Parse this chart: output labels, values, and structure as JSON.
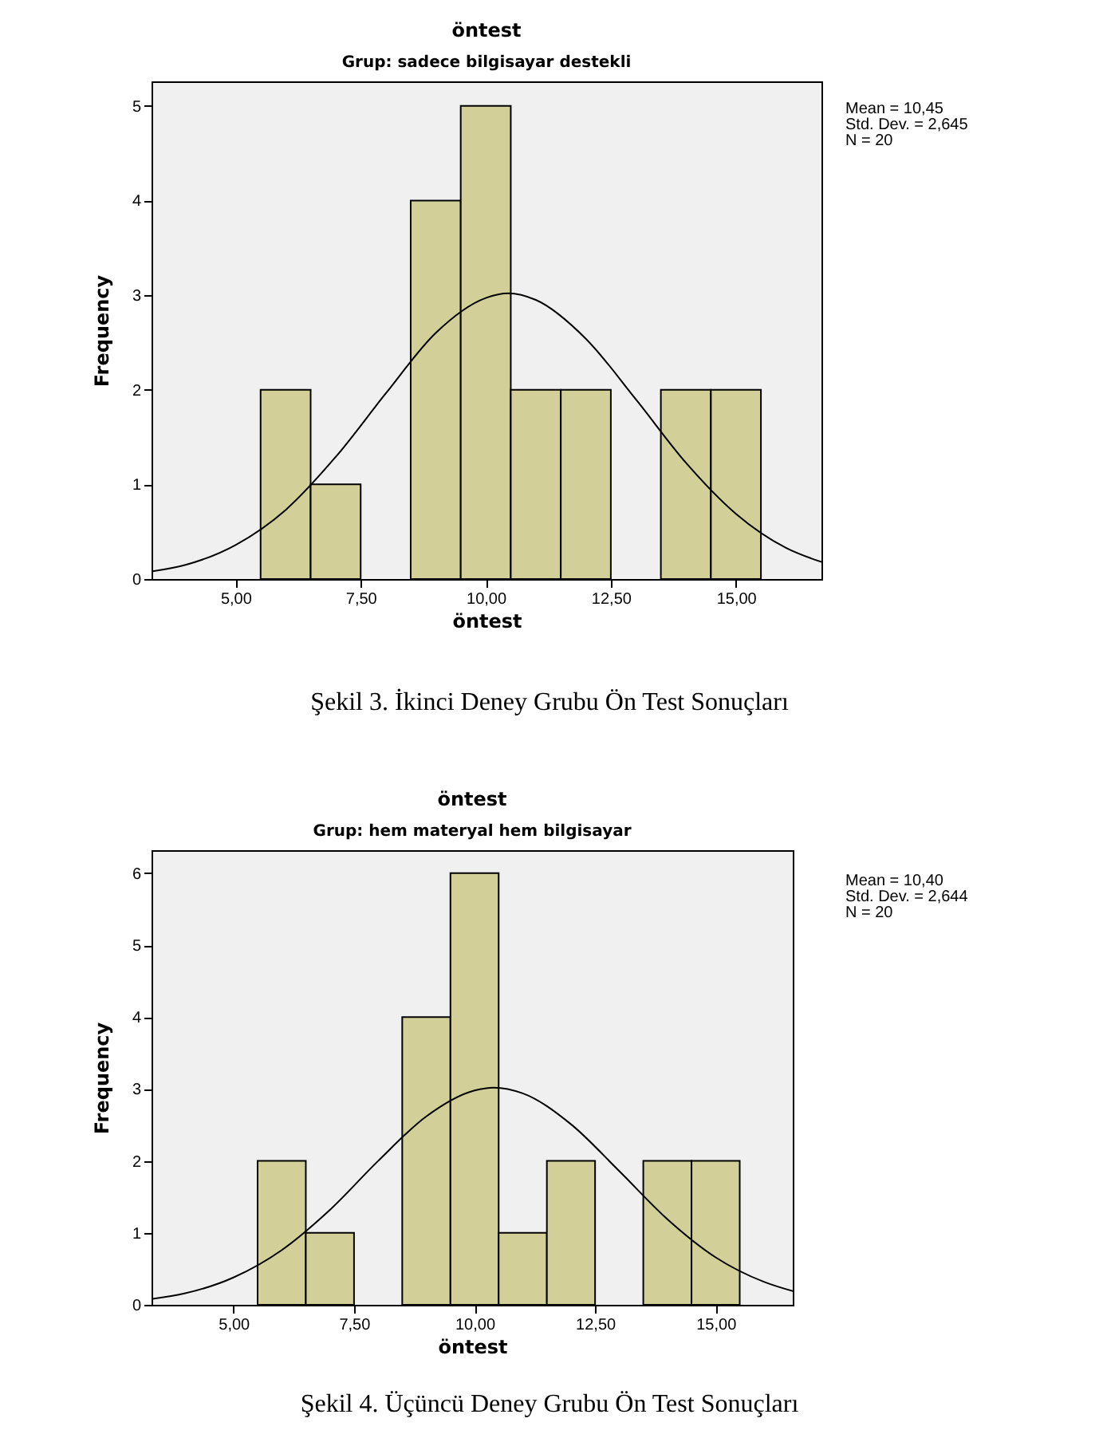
{
  "chart_data": [
    {
      "type": "histogram",
      "title": "öntest",
      "subtitle": "Grup: sadece bilgisayar destekli",
      "xlabel": "öntest",
      "ylabel": "Frequency",
      "bins": [
        5.5,
        6.5,
        7.5,
        8.5,
        9.5,
        10.5,
        11.5,
        12.5,
        13.5,
        14.5,
        15.5
      ],
      "values": [
        2,
        1,
        0,
        4,
        5,
        2,
        2,
        0,
        2,
        2
      ],
      "color": "#d3cf98",
      "series": [
        {
          "type": "line",
          "color": "#000000",
          "x": [
            3.32,
            4,
            5,
            6,
            7,
            8,
            9,
            10,
            10.45,
            11,
            12,
            13,
            14,
            15,
            16,
            16.71
          ],
          "values": [
            0.08,
            0.15,
            0.36,
            0.73,
            1.29,
            1.96,
            2.6,
            2.97,
            3.02,
            2.95,
            2.54,
            1.9,
            1.23,
            0.69,
            0.33,
            0.18
          ]
        }
      ],
      "xlim": [
        3.32,
        16.71
      ],
      "xticks": [
        {
          "value": 5,
          "label": "5,00"
        },
        {
          "value": 7.5,
          "label": "7,50"
        },
        {
          "value": 10,
          "label": "10,00"
        },
        {
          "value": 12.5,
          "label": "12,50"
        },
        {
          "value": 15,
          "label": "15,00"
        }
      ],
      "ylim": [
        0,
        5.26
      ],
      "yticks": [
        0,
        1,
        2,
        3,
        4,
        5
      ],
      "grid": false,
      "annotations": [
        "Mean = 10,45",
        "Std. Dev. = 2,645",
        "N = 20",
        "Şekil 3. İkinci Deney Grubu Ön Test Sonuçları"
      ]
    },
    {
      "type": "histogram",
      "title": "öntest",
      "subtitle": "Grup: hem materyal hem bilgisayar",
      "xlabel": "öntest",
      "ylabel": "Frequency",
      "bins": [
        5.5,
        6.5,
        7.5,
        8.5,
        9.5,
        10.5,
        11.5,
        12.5,
        13.5,
        14.5,
        15.5
      ],
      "values": [
        2,
        1,
        0,
        4,
        6,
        1,
        2,
        0,
        2,
        2
      ],
      "color": "#d3cf98",
      "series": [
        {
          "type": "line",
          "color": "#000000",
          "x": [
            3.3,
            4,
            5,
            6,
            7,
            8,
            9,
            10,
            10.4,
            11,
            12,
            13,
            14,
            15,
            16,
            16.6
          ],
          "values": [
            0.08,
            0.16,
            0.38,
            0.76,
            1.32,
            2,
            2.62,
            2.98,
            3.02,
            2.94,
            2.51,
            1.86,
            1.19,
            0.66,
            0.32,
            0.19
          ]
        }
      ],
      "xlim": [
        3.3,
        16.6
      ],
      "xticks": [
        {
          "value": 5,
          "label": "5,00"
        },
        {
          "value": 7.5,
          "label": "7,50"
        },
        {
          "value": 10,
          "label": "10,00"
        },
        {
          "value": 12.5,
          "label": "12,50"
        },
        {
          "value": 15,
          "label": "15,00"
        }
      ],
      "ylim": [
        0,
        6.32
      ],
      "yticks": [
        0,
        1,
        2,
        3,
        4,
        5,
        6
      ],
      "grid": false,
      "annotations": [
        "Mean = 10,40",
        "Std. Dev. = 2,644",
        "N = 20",
        "Şekil 4. Üçüncü Deney Grubu Ön Test Sonuçları"
      ]
    }
  ]
}
